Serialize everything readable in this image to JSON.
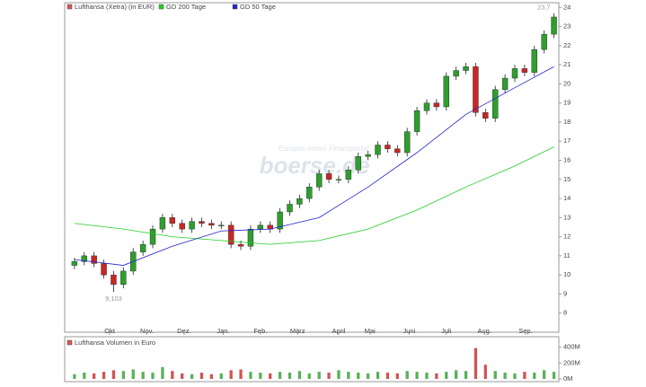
{
  "chart_data": [
    {
      "type": "candlestick",
      "watermark": [
        "Europas erstes Finanzportal",
        "boerse.de"
      ],
      "up_color": "#2e9e2e",
      "down_color": "#c62828",
      "xlim": [
        -1,
        49.5
      ],
      "xticks": [
        {
          "value": 3.6,
          "label": "Okt"
        },
        {
          "value": 7.4,
          "label": "Nov."
        },
        {
          "value": 11.2,
          "label": "Dez."
        },
        {
          "value": 15.2,
          "label": "Jan."
        },
        {
          "value": 19.0,
          "label": "Feb."
        },
        {
          "value": 22.8,
          "label": "März"
        },
        {
          "value": 27.0,
          "label": "April"
        },
        {
          "value": 30.2,
          "label": "Mai"
        },
        {
          "value": 34.2,
          "label": "Juni"
        },
        {
          "value": 38.0,
          "label": "Juli"
        },
        {
          "value": 41.9,
          "label": "Aug."
        },
        {
          "value": 46.1,
          "label": "Sep."
        }
      ],
      "ylim": [
        7,
        24.25
      ],
      "yticks": [
        8,
        9,
        10,
        11,
        12,
        13,
        14,
        15,
        16,
        17,
        18,
        19,
        20,
        21,
        22,
        23,
        24
      ],
      "series": [
        {
          "name": "Lufthansa (Xetra) (in EUR)",
          "color": "#d9534f",
          "open": [
            10.5,
            10.7,
            11.0,
            10.6,
            10.0,
            9.5,
            10.2,
            11.2,
            11.6,
            12.4,
            13.0,
            12.7,
            12.4,
            12.8,
            12.7,
            12.6,
            12.6,
            11.6,
            11.5,
            12.4,
            12.6,
            12.4,
            13.3,
            13.7,
            14.0,
            14.6,
            15.3,
            15.0,
            15.0,
            15.5,
            16.2,
            16.3,
            16.8,
            16.6,
            16.4,
            17.5,
            18.6,
            19.0,
            18.8,
            20.4,
            20.7,
            20.9,
            18.5,
            18.2,
            19.7,
            20.3,
            20.8,
            20.6,
            21.8,
            22.6
          ],
          "high": [
            10.9,
            11.2,
            11.2,
            10.8,
            10.2,
            10.4,
            11.4,
            11.8,
            12.6,
            13.2,
            13.2,
            12.9,
            13.0,
            13.0,
            12.9,
            12.8,
            12.8,
            11.8,
            12.6,
            12.8,
            12.8,
            13.5,
            13.9,
            14.2,
            14.8,
            15.5,
            15.5,
            15.2,
            15.7,
            16.4,
            16.5,
            17.0,
            17.0,
            16.8,
            17.7,
            18.8,
            19.2,
            19.2,
            20.6,
            20.9,
            21.1,
            21.1,
            18.7,
            19.9,
            20.5,
            21.0,
            21.0,
            22.0,
            22.8,
            23.7
          ],
          "low": [
            10.3,
            10.5,
            10.4,
            9.8,
            9.103,
            9.3,
            10.0,
            11.0,
            11.4,
            12.2,
            12.5,
            12.2,
            12.2,
            12.5,
            12.4,
            12.4,
            11.4,
            11.3,
            11.3,
            12.2,
            12.2,
            12.2,
            13.1,
            13.5,
            13.8,
            14.4,
            14.8,
            14.8,
            14.8,
            15.3,
            16.0,
            16.1,
            16.4,
            16.2,
            16.2,
            17.3,
            18.4,
            18.6,
            18.6,
            20.2,
            20.5,
            18.3,
            18.0,
            18.0,
            19.5,
            20.1,
            20.4,
            20.4,
            21.6,
            22.4
          ],
          "close": [
            10.7,
            11.0,
            10.6,
            10.0,
            9.5,
            10.2,
            11.2,
            11.6,
            12.4,
            13.0,
            12.7,
            12.4,
            12.8,
            12.7,
            12.6,
            12.6,
            11.6,
            11.5,
            12.4,
            12.6,
            12.4,
            13.3,
            13.7,
            14.0,
            14.6,
            15.3,
            15.0,
            15.0,
            15.5,
            16.2,
            16.3,
            16.8,
            16.6,
            16.4,
            17.5,
            18.6,
            19.0,
            18.8,
            20.4,
            20.7,
            20.9,
            18.5,
            18.2,
            19.7,
            20.3,
            20.8,
            20.6,
            21.8,
            22.6,
            23.5
          ]
        },
        {
          "name": "GD 200 Tage",
          "color": "#22cc22",
          "x": [
            0,
            5,
            10,
            15,
            20,
            25,
            30,
            35,
            40,
            45,
            49
          ],
          "values": [
            12.7,
            12.4,
            12.0,
            11.8,
            11.6,
            11.8,
            12.4,
            13.4,
            14.6,
            15.7,
            16.7
          ]
        },
        {
          "name": "GD 50 Tage",
          "color": "#2222cc",
          "x": [
            0,
            5,
            10,
            15,
            20,
            25,
            30,
            35,
            40,
            45,
            49
          ],
          "values": [
            10.8,
            10.5,
            11.5,
            12.3,
            12.4,
            13.0,
            14.6,
            16.4,
            18.4,
            19.8,
            20.9
          ]
        }
      ],
      "annotations": [
        {
          "label": "9,103",
          "index": 4
        },
        {
          "label": "23,7",
          "index": 49
        }
      ]
    },
    {
      "type": "bar",
      "title": "Lufthansa Volumen in Euro",
      "color": "#d9534f",
      "xlim": [
        -1,
        49.5
      ],
      "ylim": [
        0,
        420
      ],
      "yticks": [
        {
          "value": 0,
          "label": "0M"
        },
        {
          "value": 200,
          "label": "200M"
        },
        {
          "value": 400,
          "label": "400M"
        }
      ],
      "values": [
        60,
        80,
        70,
        90,
        110,
        100,
        120,
        90,
        80,
        150,
        100,
        70,
        60,
        80,
        60,
        70,
        110,
        120,
        90,
        80,
        70,
        90,
        80,
        100,
        70,
        90,
        80,
        110,
        90,
        80,
        70,
        90,
        80,
        70,
        100,
        90,
        80,
        70,
        90,
        110,
        100,
        390,
        180,
        100,
        80,
        70,
        90,
        80,
        110,
        90
      ]
    }
  ]
}
